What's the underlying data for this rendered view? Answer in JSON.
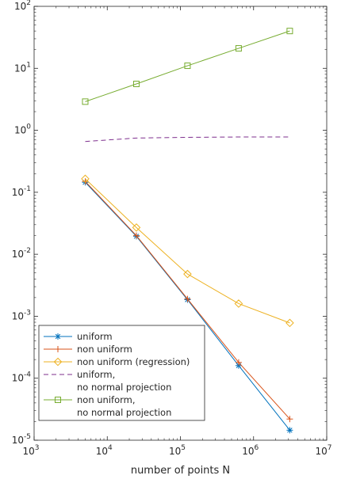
{
  "chart_data": {
    "type": "line",
    "xscale": "log",
    "yscale": "log",
    "xlim": [
      1000,
      10000000
    ],
    "ylim": [
      1e-05,
      100
    ],
    "xlabel": "number of points N",
    "ylabel": "",
    "title": "",
    "grid": false,
    "legend_position": "bottom-left",
    "x_ticks": [
      {
        "base": "10",
        "exp": "3"
      },
      {
        "base": "10",
        "exp": "4"
      },
      {
        "base": "10",
        "exp": "5"
      },
      {
        "base": "10",
        "exp": "6"
      },
      {
        "base": "10",
        "exp": "7"
      }
    ],
    "y_ticks": [
      {
        "base": "10",
        "exp": "-5"
      },
      {
        "base": "10",
        "exp": "-4"
      },
      {
        "base": "10",
        "exp": "-3"
      },
      {
        "base": "10",
        "exp": "-2"
      },
      {
        "base": "10",
        "exp": "-1"
      },
      {
        "base": "10",
        "exp": "0"
      },
      {
        "base": "10",
        "exp": "1"
      },
      {
        "base": "10",
        "exp": "2"
      }
    ],
    "x": [
      5000,
      25000,
      125000,
      625000,
      3125000
    ],
    "series": [
      {
        "name": "uniform",
        "color": "#0072BD",
        "marker": "asterisk",
        "dash": "solid",
        "values": [
          0.145,
          0.0195,
          0.00185,
          0.00016,
          1.45e-05
        ]
      },
      {
        "name": "non uniform",
        "color": "#D95319",
        "marker": "plus",
        "dash": "solid",
        "values": [
          0.15,
          0.02,
          0.0019,
          0.00018,
          2.2e-05
        ]
      },
      {
        "name": "non uniform (regression)",
        "color": "#EDB120",
        "marker": "diamond",
        "dash": "solid",
        "values": [
          0.165,
          0.027,
          0.0048,
          0.0016,
          0.00078
        ]
      },
      {
        "name": "uniform,\nno normal projection",
        "color": "#7E2F8E",
        "marker": "none",
        "dash": "dashed",
        "values": [
          0.66,
          0.75,
          0.77,
          0.78,
          0.78
        ]
      },
      {
        "name": "non uniform,\nno normal projection",
        "color": "#77AC30",
        "marker": "square",
        "dash": "solid",
        "values": [
          2.9,
          5.6,
          11,
          21,
          40
        ]
      }
    ]
  }
}
